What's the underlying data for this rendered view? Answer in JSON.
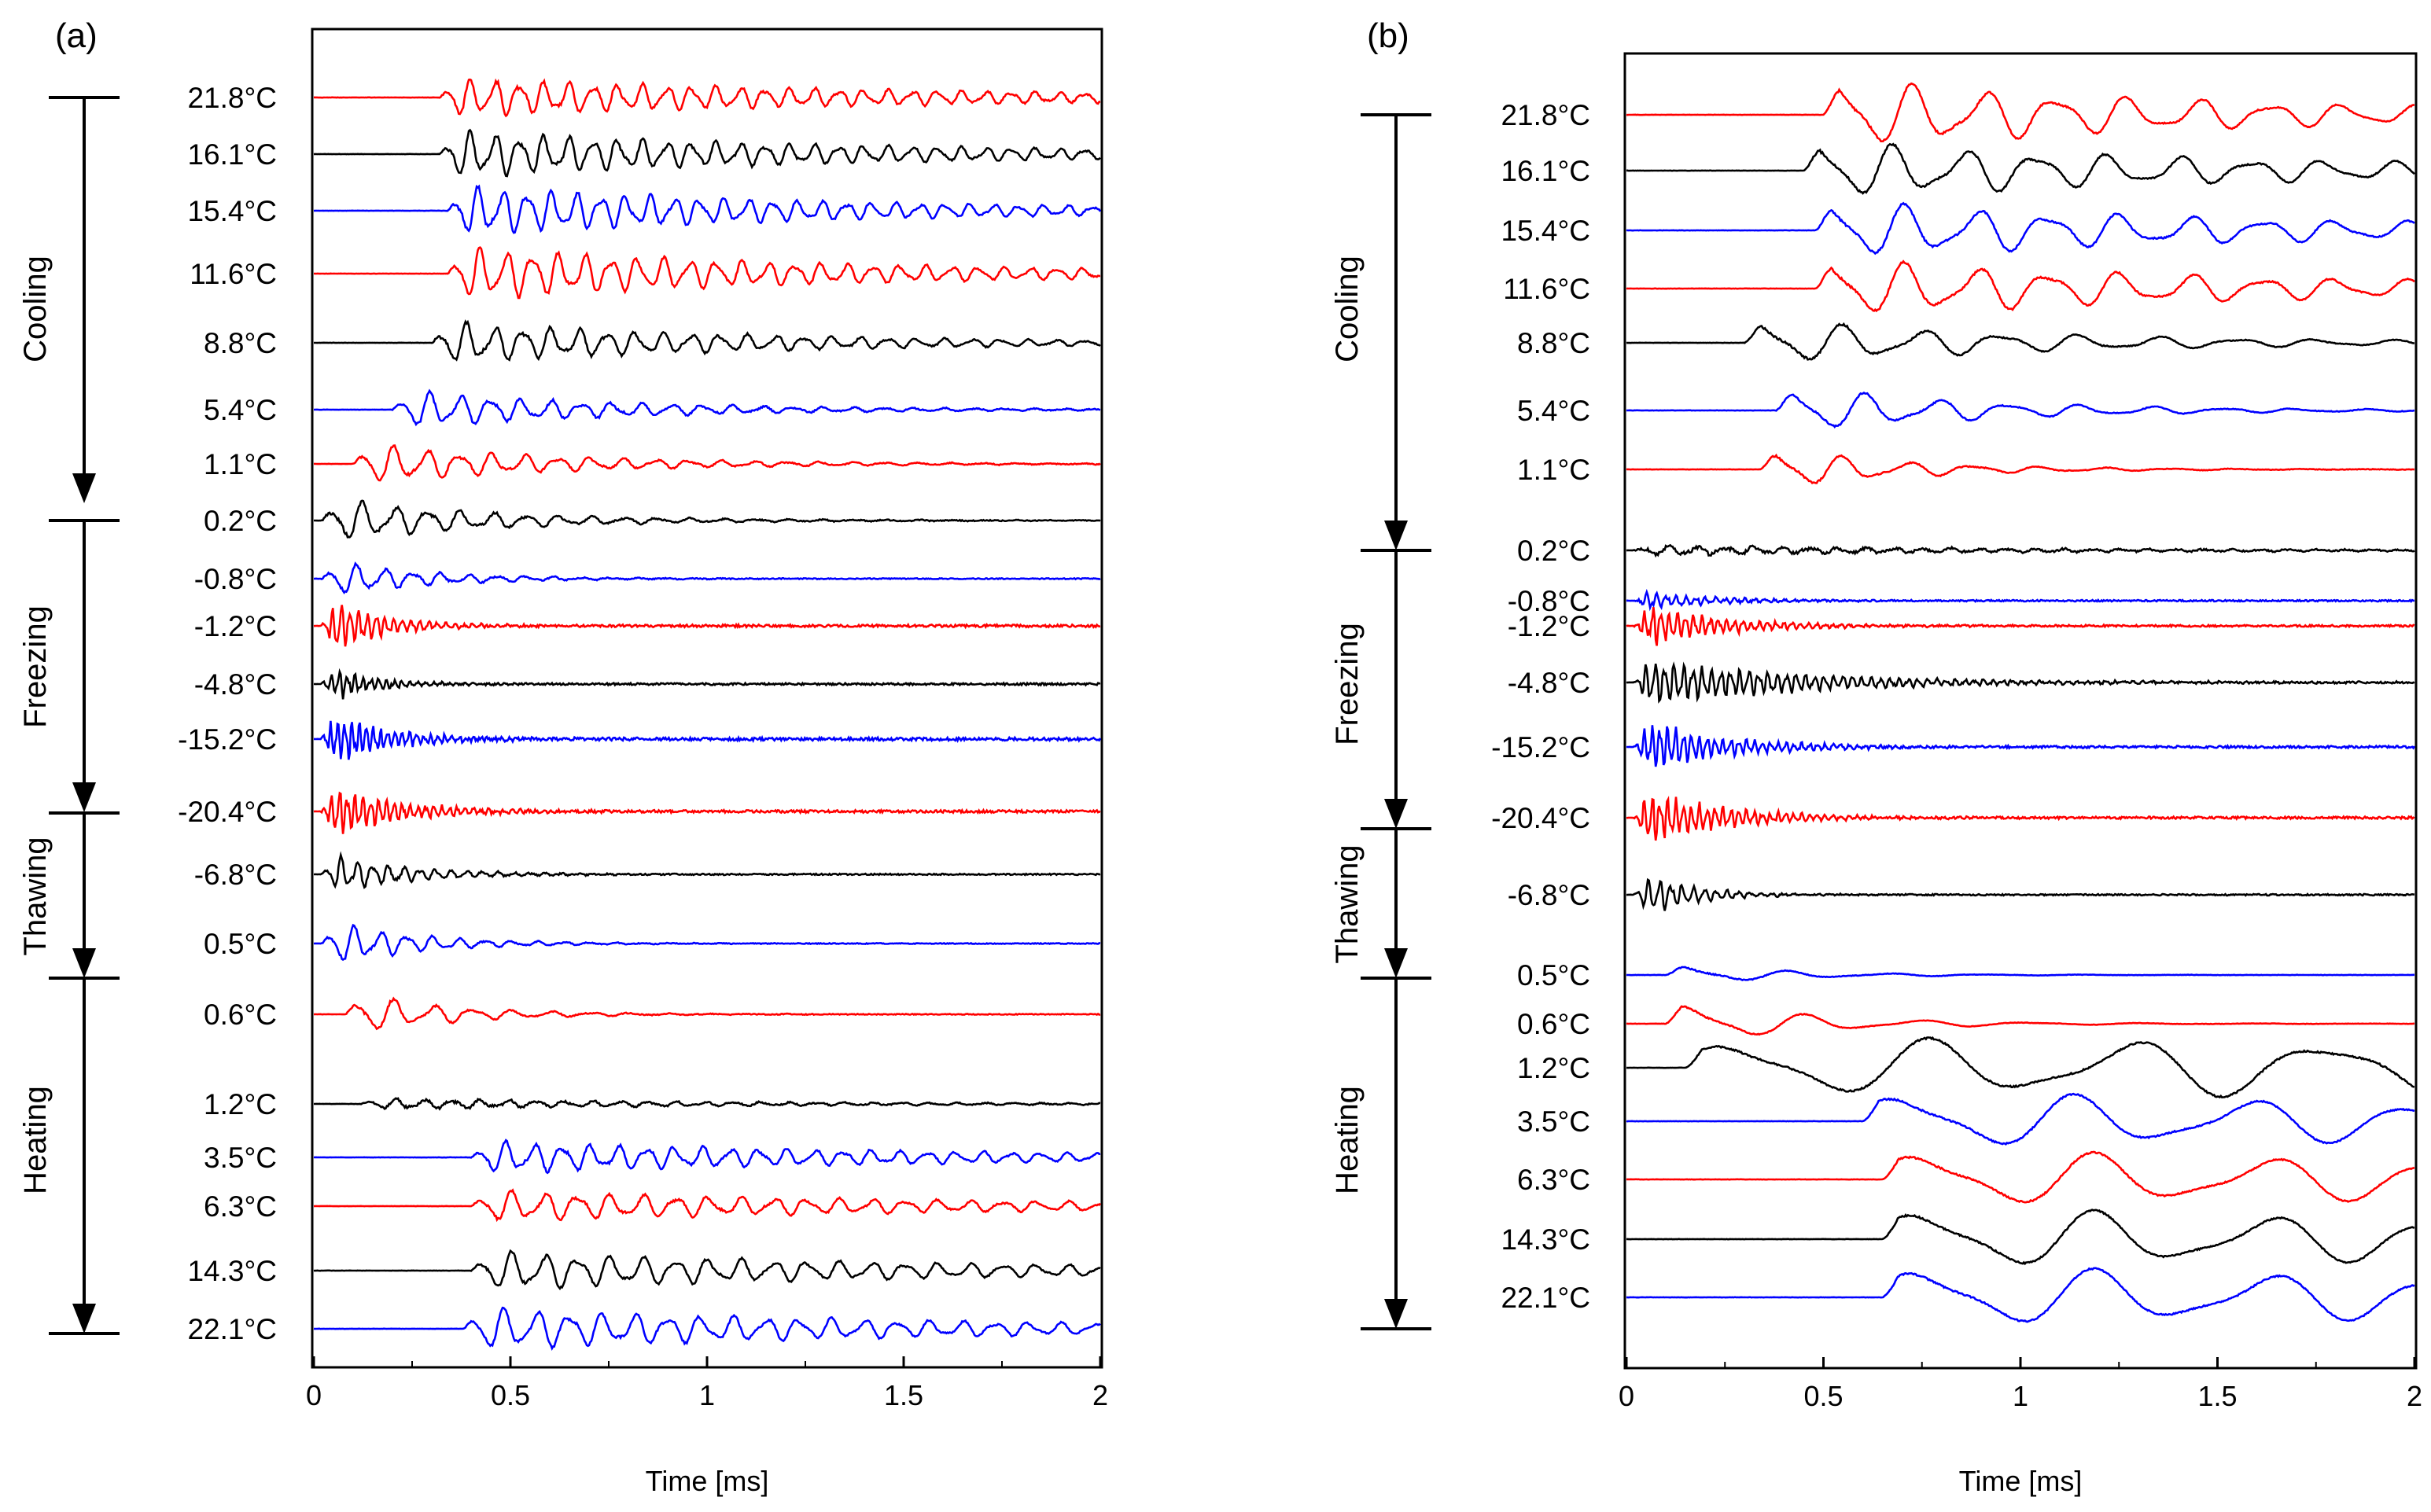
{
  "figure": {
    "panels": [
      {
        "label": "(a)",
        "phases": [
          {
            "name": "Cooling",
            "start": 21.8,
            "end": 0.2
          },
          {
            "name": "Freezing",
            "start": 0.2,
            "end": -20.4
          },
          {
            "name": "Thawing",
            "start": -20.4,
            "end": 0.5
          },
          {
            "name": "Heating",
            "start": 0.5,
            "end": 22.1
          }
        ],
        "xaxis": {
          "label": "Time [ms]",
          "ticks": [
            "0",
            "0.5",
            "1",
            "1.5",
            "2"
          ]
        }
      },
      {
        "label": "(b)",
        "phases": [
          {
            "name": "Cooling",
            "start": 21.8,
            "end": 0.2
          },
          {
            "name": "Freezing",
            "start": 0.2,
            "end": -20.4
          },
          {
            "name": "Thawing",
            "start": -20.4,
            "end": 0.5
          },
          {
            "name": "Heating",
            "start": 0.5,
            "end": 22.1
          }
        ],
        "xaxis": {
          "label": "Time [ms]",
          "ticks": [
            "0",
            "0.5",
            "1",
            "1.5",
            "2"
          ]
        }
      }
    ]
  },
  "colors": {
    "red": "#ff0000",
    "black": "#000000",
    "blue": "#0000ff"
  },
  "chart_data": [
    {
      "type": "line",
      "title": "(a)",
      "xlabel": "Time [ms]",
      "ylabel": "",
      "xlim": [
        0,
        2
      ],
      "series": [
        {
          "name": "21.8°C",
          "label": "21.8°C",
          "color": "red",
          "onset": 0.32,
          "freq": 16,
          "amp": 0.55,
          "decay": 0.8,
          "noise": 0.05
        },
        {
          "name": "16.1°C",
          "label": "16.1°C",
          "color": "black",
          "onset": 0.32,
          "freq": 16,
          "amp": 0.65,
          "decay": 0.9,
          "noise": 0.05
        },
        {
          "name": "15.4°C",
          "label": "15.4°C",
          "color": "blue",
          "onset": 0.34,
          "freq": 16,
          "amp": 0.7,
          "decay": 1.0,
          "noise": 0.05
        },
        {
          "name": "11.6°C",
          "label": "11.6°C",
          "color": "red",
          "onset": 0.34,
          "freq": 15,
          "amp": 0.75,
          "decay": 1.0,
          "noise": 0.05
        },
        {
          "name": "8.8°C",
          "label": "8.8°C",
          "color": "black",
          "onset": 0.3,
          "freq": 14,
          "amp": 0.6,
          "decay": 1.2,
          "noise": 0.05
        },
        {
          "name": "5.4°C",
          "label": "5.4°C",
          "color": "blue",
          "onset": 0.2,
          "freq": 13,
          "amp": 0.55,
          "decay": 1.8,
          "noise": 0.05
        },
        {
          "name": "1.1°C",
          "label": "1.1°C",
          "color": "red",
          "onset": 0.1,
          "freq": 12,
          "amp": 0.6,
          "decay": 2.0,
          "noise": 0.05
        },
        {
          "name": "0.2°C",
          "label": "0.2°C",
          "color": "black",
          "onset": 0.02,
          "freq": 12,
          "amp": 0.65,
          "decay": 2.5,
          "noise": 0.06
        },
        {
          "name": "-0.8°C",
          "label": "-0.8°C",
          "color": "blue",
          "onset": 0.02,
          "freq": 14,
          "amp": 0.55,
          "decay": 4.0,
          "noise": 0.06
        },
        {
          "name": "-1.2°C",
          "label": "-1.2°C",
          "color": "red",
          "onset": 0.02,
          "freq": 45,
          "amp": 0.9,
          "decay": 8.0,
          "noise": 0.15
        },
        {
          "name": "-4.8°C",
          "label": "-4.8°C",
          "color": "black",
          "onset": 0.02,
          "freq": 50,
          "amp": 0.55,
          "decay": 9.0,
          "noise": 0.12
        },
        {
          "name": "-15.2°C",
          "label": "-15.2°C",
          "color": "blue",
          "onset": 0.02,
          "freq": 55,
          "amp": 0.85,
          "decay": 7.0,
          "noise": 0.18
        },
        {
          "name": "-20.4°C",
          "label": "-20.4°C",
          "color": "red",
          "onset": 0.02,
          "freq": 50,
          "amp": 0.85,
          "decay": 6.0,
          "noise": 0.15
        },
        {
          "name": "-6.8°C",
          "label": "-6.8°C",
          "color": "black",
          "onset": 0.02,
          "freq": 25,
          "amp": 0.6,
          "decay": 5.0,
          "noise": 0.08
        },
        {
          "name": "0.5°C",
          "label": "0.5°C",
          "color": "blue",
          "onset": 0.02,
          "freq": 15,
          "amp": 0.7,
          "decay": 4.5,
          "noise": 0.05
        },
        {
          "name": "0.6°C",
          "label": "0.6°C",
          "color": "red",
          "onset": 0.08,
          "freq": 10,
          "amp": 0.65,
          "decay": 4.0,
          "noise": 0.05
        },
        {
          "name": "1.2°C",
          "label": "1.2°C",
          "color": "black",
          "onset": 0.12,
          "freq": 14,
          "amp": 0.15,
          "decay": 1.0,
          "noise": 0.04
        },
        {
          "name": "3.5°C",
          "label": "3.5°C",
          "color": "blue",
          "onset": 0.4,
          "freq": 14,
          "amp": 0.45,
          "decay": 0.8,
          "noise": 0.04
        },
        {
          "name": "6.3°C",
          "label": "6.3°C",
          "color": "red",
          "onset": 0.4,
          "freq": 12,
          "amp": 0.45,
          "decay": 0.8,
          "noise": 0.04
        },
        {
          "name": "14.3°C",
          "label": "14.3°C",
          "color": "black",
          "onset": 0.4,
          "freq": 12,
          "amp": 0.55,
          "decay": 0.8,
          "noise": 0.04
        },
        {
          "name": "22.1°C",
          "label": "22.1°C",
          "color": "blue",
          "onset": 0.38,
          "freq": 12,
          "amp": 0.6,
          "decay": 0.8,
          "noise": 0.04
        }
      ]
    },
    {
      "type": "line",
      "title": "(b)",
      "xlabel": "Time [ms]",
      "ylabel": "",
      "xlim": [
        0,
        2
      ],
      "series": [
        {
          "name": "21.8°C",
          "label": "21.8°C",
          "color": "red",
          "onset": 0.5,
          "freq": 5.5,
          "amp": 0.9,
          "decay": 0.9,
          "noise": 0.03
        },
        {
          "name": "16.1°C",
          "label": "16.1°C",
          "color": "black",
          "onset": 0.45,
          "freq": 5.5,
          "amp": 0.75,
          "decay": 0.8,
          "noise": 0.03
        },
        {
          "name": "15.4°C",
          "label": "15.4°C",
          "color": "blue",
          "onset": 0.48,
          "freq": 5.5,
          "amp": 0.75,
          "decay": 0.8,
          "noise": 0.03
        },
        {
          "name": "11.6°C",
          "label": "11.6°C",
          "color": "red",
          "onset": 0.48,
          "freq": 5.5,
          "amp": 0.75,
          "decay": 0.8,
          "noise": 0.03
        },
        {
          "name": "8.8°C",
          "label": "8.8°C",
          "color": "black",
          "onset": 0.3,
          "freq": 5.0,
          "amp": 0.6,
          "decay": 1.3,
          "noise": 0.03
        },
        {
          "name": "5.4°C",
          "label": "5.4°C",
          "color": "blue",
          "onset": 0.38,
          "freq": 5.5,
          "amp": 0.65,
          "decay": 2.0,
          "noise": 0.03
        },
        {
          "name": "1.1°C",
          "label": "1.1°C",
          "color": "red",
          "onset": 0.34,
          "freq": 6.0,
          "amp": 0.6,
          "decay": 3.0,
          "noise": 0.03
        },
        {
          "name": "0.2°C",
          "label": "0.2°C",
          "color": "black",
          "onset": 0.02,
          "freq": 14,
          "amp": 0.12,
          "decay": 1.0,
          "noise": 0.05
        },
        {
          "name": "-0.8°C",
          "label": "-0.8°C",
          "color": "blue",
          "onset": 0.02,
          "freq": 40,
          "amp": 0.25,
          "decay": 6.0,
          "noise": 0.08
        },
        {
          "name": "-1.2°C",
          "label": "-1.2°C",
          "color": "red",
          "onset": 0.02,
          "freq": 48,
          "amp": 0.55,
          "decay": 5.0,
          "noise": 0.1
        },
        {
          "name": "-4.8°C",
          "label": "-4.8°C",
          "color": "black",
          "onset": 0.02,
          "freq": 42,
          "amp": 0.6,
          "decay": 2.5,
          "noise": 0.1
        },
        {
          "name": "-15.2°C",
          "label": "-15.2°C",
          "color": "blue",
          "onset": 0.02,
          "freq": 50,
          "amp": 0.75,
          "decay": 5.0,
          "noise": 0.12
        },
        {
          "name": "-20.4°C",
          "label": "-20.4°C",
          "color": "red",
          "onset": 0.02,
          "freq": 50,
          "amp": 0.75,
          "decay": 5.0,
          "noise": 0.12
        },
        {
          "name": "-6.8°C",
          "label": "-6.8°C",
          "color": "black",
          "onset": 0.02,
          "freq": 35,
          "amp": 0.65,
          "decay": 8.0,
          "noise": 0.08
        },
        {
          "name": "0.5°C",
          "label": "0.5°C",
          "color": "blue",
          "onset": 0.1,
          "freq": 4.0,
          "amp": 0.3,
          "decay": 3.5,
          "noise": 0.02
        },
        {
          "name": "0.6°C",
          "label": "0.6°C",
          "color": "red",
          "onset": 0.1,
          "freq": 3.5,
          "amp": 0.65,
          "decay": 3.0,
          "noise": 0.02
        },
        {
          "name": "1.2°C",
          "label": "1.2°C",
          "color": "black",
          "onset": 0.15,
          "freq": 2.0,
          "amp": 0.7,
          "decay": 0.0,
          "noise": 0.02
        },
        {
          "name": "3.5°C",
          "label": "3.5°C",
          "color": "blue",
          "onset": 0.6,
          "freq": 2.3,
          "amp": 0.75,
          "decay": 0.3,
          "noise": 0.02
        },
        {
          "name": "6.3°C",
          "label": "6.3°C",
          "color": "red",
          "onset": 0.65,
          "freq": 2.3,
          "amp": 0.75,
          "decay": 0.3,
          "noise": 0.02
        },
        {
          "name": "14.3°C",
          "label": "14.3°C",
          "color": "black",
          "onset": 0.65,
          "freq": 2.3,
          "amp": 0.8,
          "decay": 0.3,
          "noise": 0.02
        },
        {
          "name": "22.1°C",
          "label": "22.1°C",
          "color": "blue",
          "onset": 0.65,
          "freq": 2.3,
          "amp": 0.8,
          "decay": 0.3,
          "noise": 0.02
        }
      ]
    }
  ]
}
